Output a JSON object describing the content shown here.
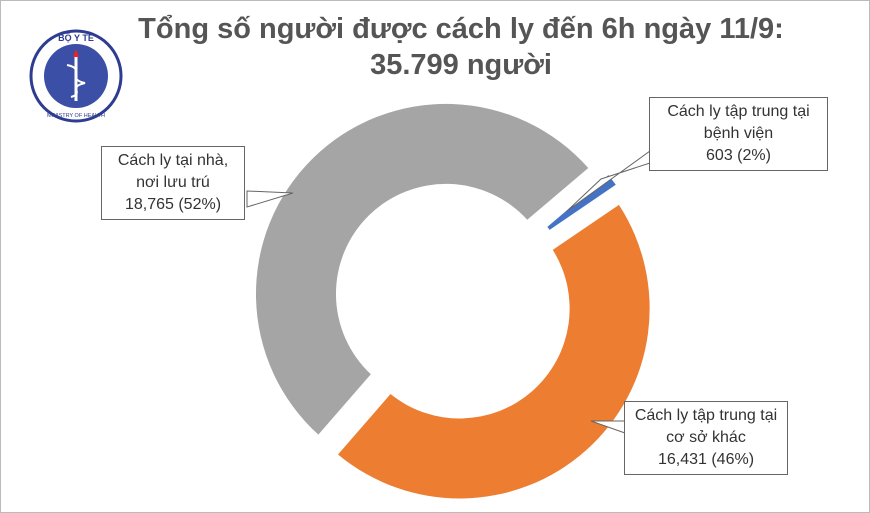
{
  "chart_data": {
    "type": "donut",
    "title": "Tổng số người được cách ly đến 6h ngày 11/9: 35.799 người",
    "logo": {
      "top": "BỘ Y TẾ",
      "bottom": "MINISTRY OF HEALTH"
    },
    "categories": [
      "Cách ly tại nhà, nơi lưu trú",
      "Cách ly tập trung tại bệnh viện",
      "Cách ly tập trung tại cơ sở khác"
    ],
    "values": [
      18765,
      603,
      16431
    ],
    "value_labels": [
      "18,765 (52%)",
      "603 (2%)",
      "16,431 (46%)"
    ],
    "colors": [
      "#a5a5a5",
      "#4472c4",
      "#ed7d31"
    ]
  }
}
